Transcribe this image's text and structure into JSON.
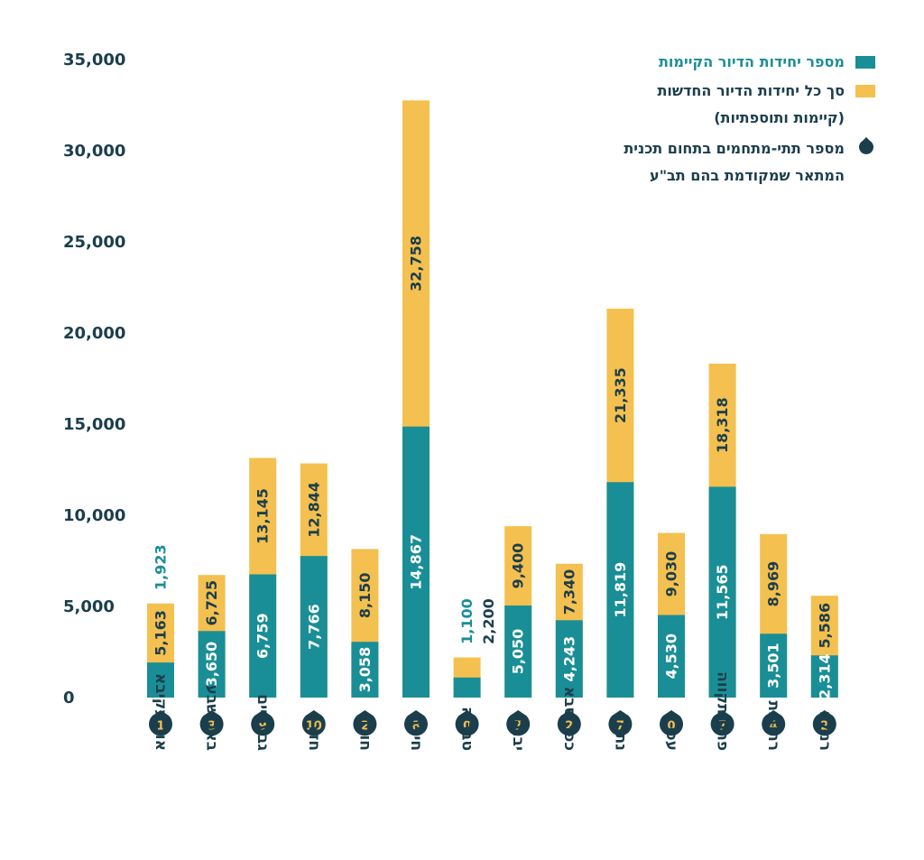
{
  "colors": {
    "existing": "#1a8e96",
    "total": "#f4c04f",
    "dark": "#1b3e4c",
    "badge_text": "#f4c04f"
  },
  "legend": {
    "existing": "מספר יחידות הדיור הקיימות",
    "total_line1": "סך כל יחידות הדיור החדשות",
    "total_line2": "(קיימות ותוספתיות)",
    "subareas_line1": "מספר תתי-מתחמים בתחום תכנית",
    "subareas_line2": "המתאר שמקודמת בהם תב\"ע"
  },
  "chart_data": {
    "type": "bar",
    "ylim": [
      0,
      35000
    ],
    "yticks": [
      "0",
      "5,000",
      "10,000",
      "15,000",
      "20,000",
      "25,000",
      "30,000",
      "35,000"
    ],
    "grid": false,
    "legend_position": "top-right",
    "categories": [
      "אור עקיבא",
      "באר שבע",
      "גבעתיים",
      "חדרה",
      "חולון",
      "חיפה",
      "טבריה",
      "יבנה",
      "כפר סבא",
      "נתניה",
      "עכו",
      "פתח תקווה",
      "רחובות",
      "רמלה"
    ],
    "series": [
      {
        "name": "מספר יחידות הדיור הקיימות",
        "values": [
          1923,
          3650,
          6759,
          7766,
          3058,
          14867,
          1100,
          5050,
          4243,
          11819,
          4530,
          11565,
          3501,
          2314
        ],
        "labels": [
          "1,923",
          "3,650",
          "6,759",
          "7,766",
          "3,058",
          "14,867",
          "1,100",
          "5,050",
          "4,243",
          "11,819",
          "4,530",
          "11,565",
          "3,501",
          "2,314"
        ]
      },
      {
        "name": "סך כל יחידות הדיור החדשות (קיימות ותוספתיות)",
        "values": [
          5163,
          6725,
          13145,
          12844,
          8150,
          32758,
          2200,
          9400,
          7340,
          21335,
          9030,
          18318,
          8969,
          5586
        ],
        "labels": [
          "5,163",
          "6,725",
          "13,145",
          "12,844",
          "8,150",
          "32,758",
          "2,200",
          "9,400",
          "7,340",
          "21,335",
          "9,030",
          "18,318",
          "8,969",
          "5,586"
        ]
      },
      {
        "name": "מספר תתי-מתחמים בתחום תכנית המתאר שמקודמת בהם תב\"ע",
        "values": [
          1,
          3,
          9,
          10,
          2,
          8,
          0,
          7,
          2,
          7,
          0,
          7,
          4,
          2
        ],
        "labels": [
          "1",
          "3",
          "9",
          "10",
          "2",
          "8",
          "0",
          "7",
          "2",
          "7",
          "0",
          "7",
          "4",
          "2"
        ]
      }
    ]
  }
}
